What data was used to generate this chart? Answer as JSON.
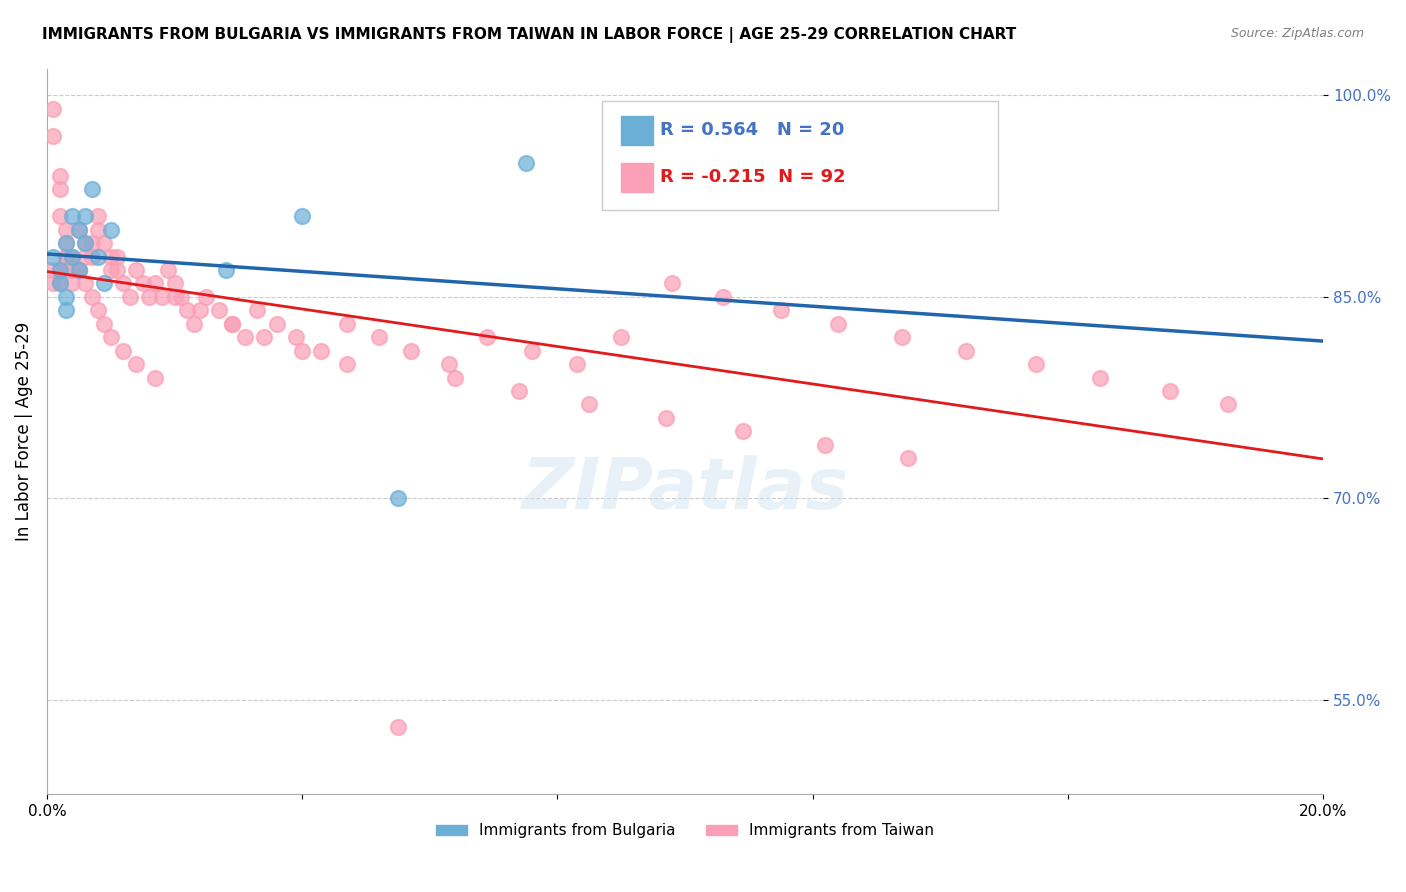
{
  "title": "IMMIGRANTS FROM BULGARIA VS IMMIGRANTS FROM TAIWAN IN LABOR FORCE | AGE 25-29 CORRELATION CHART",
  "source": "Source: ZipAtlas.com",
  "xlabel": "",
  "ylabel": "In Labor Force | Age 25-29",
  "watermark": "ZIPatlas",
  "legend_bulgaria": "Immigrants from Bulgaria",
  "legend_taiwan": "Immigrants from Taiwan",
  "R_bulgaria": 0.564,
  "N_bulgaria": 20,
  "R_taiwan": -0.215,
  "N_taiwan": 92,
  "xlim": [
    0.0,
    0.2
  ],
  "ylim": [
    0.48,
    1.02
  ],
  "yticks": [
    0.55,
    0.7,
    0.85,
    1.0
  ],
  "ytick_labels": [
    "55.0%",
    "70.0%",
    "85.0%",
    "100.0%"
  ],
  "xticks": [
    0.0,
    0.04,
    0.08,
    0.12,
    0.16,
    0.2
  ],
  "xtick_labels": [
    "0.0%",
    "",
    "",
    "",
    "",
    "20.0%"
  ],
  "color_bulgaria": "#6baed6",
  "color_taiwan": "#fa9fb5",
  "line_color_bulgaria": "#2166ac",
  "line_color_taiwan": "#e31a1c",
  "bulgaria_x": [
    0.001,
    0.002,
    0.002,
    0.003,
    0.003,
    0.003,
    0.004,
    0.004,
    0.005,
    0.005,
    0.006,
    0.006,
    0.007,
    0.008,
    0.009,
    0.01,
    0.028,
    0.04,
    0.055,
    0.075
  ],
  "bulgaria_y": [
    0.88,
    0.87,
    0.86,
    0.89,
    0.85,
    0.84,
    0.91,
    0.88,
    0.9,
    0.87,
    0.91,
    0.89,
    0.93,
    0.88,
    0.86,
    0.9,
    0.87,
    0.91,
    0.7,
    0.95
  ],
  "taiwan_x": [
    0.001,
    0.001,
    0.002,
    0.002,
    0.002,
    0.003,
    0.003,
    0.003,
    0.004,
    0.004,
    0.004,
    0.005,
    0.005,
    0.006,
    0.006,
    0.007,
    0.007,
    0.008,
    0.008,
    0.009,
    0.01,
    0.01,
    0.011,
    0.011,
    0.012,
    0.013,
    0.014,
    0.015,
    0.016,
    0.017,
    0.018,
    0.019,
    0.02,
    0.021,
    0.022,
    0.023,
    0.025,
    0.027,
    0.029,
    0.031,
    0.033,
    0.036,
    0.039,
    0.043,
    0.047,
    0.052,
    0.057,
    0.063,
    0.069,
    0.076,
    0.083,
    0.09,
    0.098,
    0.106,
    0.115,
    0.124,
    0.134,
    0.144,
    0.155,
    0.165,
    0.176,
    0.185,
    0.001,
    0.001,
    0.002,
    0.002,
    0.003,
    0.003,
    0.004,
    0.005,
    0.006,
    0.007,
    0.008,
    0.009,
    0.01,
    0.012,
    0.014,
    0.017,
    0.02,
    0.024,
    0.029,
    0.034,
    0.04,
    0.047,
    0.055,
    0.064,
    0.074,
    0.085,
    0.097,
    0.109,
    0.122,
    0.135
  ],
  "taiwan_y": [
    0.99,
    0.97,
    0.94,
    0.93,
    0.91,
    0.9,
    0.89,
    0.88,
    0.87,
    0.86,
    0.88,
    0.87,
    0.9,
    0.89,
    0.88,
    0.89,
    0.88,
    0.91,
    0.9,
    0.89,
    0.88,
    0.87,
    0.88,
    0.87,
    0.86,
    0.85,
    0.87,
    0.86,
    0.85,
    0.86,
    0.85,
    0.87,
    0.86,
    0.85,
    0.84,
    0.83,
    0.85,
    0.84,
    0.83,
    0.82,
    0.84,
    0.83,
    0.82,
    0.81,
    0.83,
    0.82,
    0.81,
    0.8,
    0.82,
    0.81,
    0.8,
    0.82,
    0.86,
    0.85,
    0.84,
    0.83,
    0.82,
    0.81,
    0.8,
    0.79,
    0.78,
    0.77,
    0.87,
    0.86,
    0.87,
    0.86,
    0.88,
    0.87,
    0.88,
    0.87,
    0.86,
    0.85,
    0.84,
    0.83,
    0.82,
    0.81,
    0.8,
    0.79,
    0.85,
    0.84,
    0.83,
    0.82,
    0.81,
    0.8,
    0.53,
    0.79,
    0.78,
    0.77,
    0.76,
    0.75,
    0.74,
    0.73
  ]
}
